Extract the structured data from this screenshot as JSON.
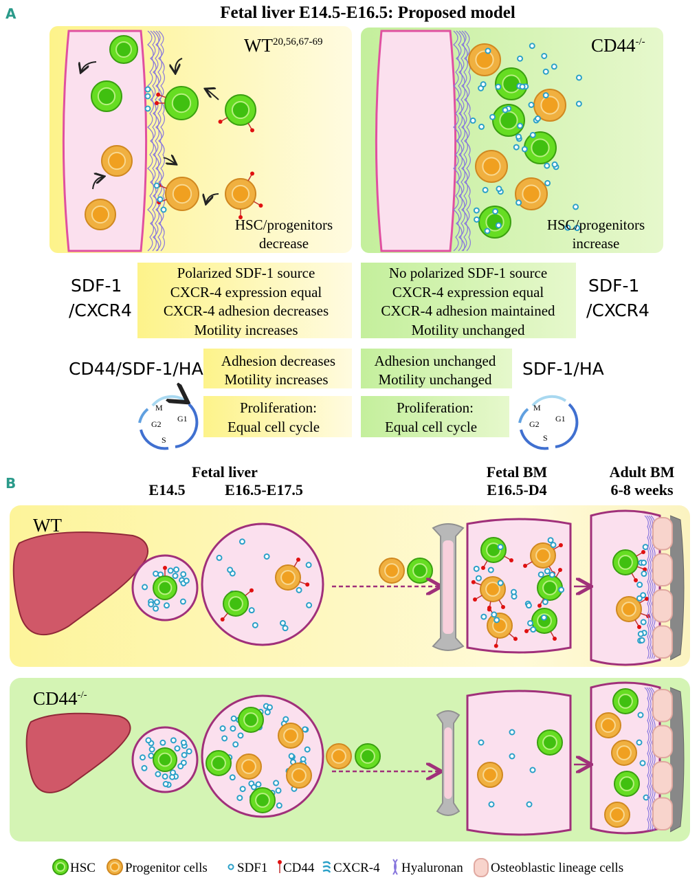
{
  "panel_a": {
    "letter": "A",
    "title": "Fetal liver E14.5-E16.5: Proposed model",
    "wt_label": "WT",
    "wt_refs": "20,56,67-69",
    "ko_label": "CD44",
    "ko_sup": "-/-",
    "wt_note": [
      "HSC/progenitors",
      "decrease"
    ],
    "ko_note": [
      "HSC/progenitors",
      "increase"
    ],
    "row1_left_label": [
      "SDF-1",
      "/CXCR4"
    ],
    "row1_right_label": [
      "SDF-1",
      "/CXCR4"
    ],
    "row1_wt": [
      "Polarized SDF-1 source",
      "CXCR-4 expression equal",
      "CXCR-4 adhesion decreases",
      "Motility increases"
    ],
    "row1_ko": [
      "No polarized SDF-1 source",
      "CXCR-4 expression equal",
      "CXCR-4 adhesion maintained",
      "Motility unchanged"
    ],
    "row2_left_label": "CD44/SDF-1/HA",
    "row2_right_label": "SDF-1/HA",
    "row2_wt": [
      "Adhesion decreases",
      "Motility increases"
    ],
    "row2_ko": [
      "Adhesion unchanged",
      "Motility unchanged"
    ],
    "row3_wt": [
      "Proliferation:",
      "Equal cell cycle"
    ],
    "row3_ko": [
      "Proliferation:",
      "Equal cell cycle"
    ],
    "cell_cycle_phases": [
      "M",
      "G1",
      "S",
      "G2"
    ]
  },
  "panel_b": {
    "letter": "B",
    "fetal_liver": "Fetal liver",
    "e145": "E14.5",
    "e165": "E16.5-E17.5",
    "fetal_bm": [
      "Fetal BM",
      "E16.5-D4"
    ],
    "adult_bm": [
      "Adult BM",
      "6-8 weeks"
    ],
    "wt_label": "WT",
    "ko_label": "CD44",
    "ko_sup": "-/-"
  },
  "legend": [
    "HSC",
    "Progenitor cells",
    "SDF1",
    "CD44",
    "CXCR-4",
    "Hyaluronan",
    "Osteoblastic lineage cells"
  ],
  "colors": {
    "hsc": "#66dd22",
    "progenitor": "#f0a830",
    "sdf1": "#2aa0c8",
    "cd44": "#e01010",
    "hyaluronan": "#8877dd",
    "vessel": "#f8d8ec",
    "wt_bg": "#fdf7a0",
    "ko_bg": "#c8f0a0",
    "accent": "#2a9a8a"
  }
}
